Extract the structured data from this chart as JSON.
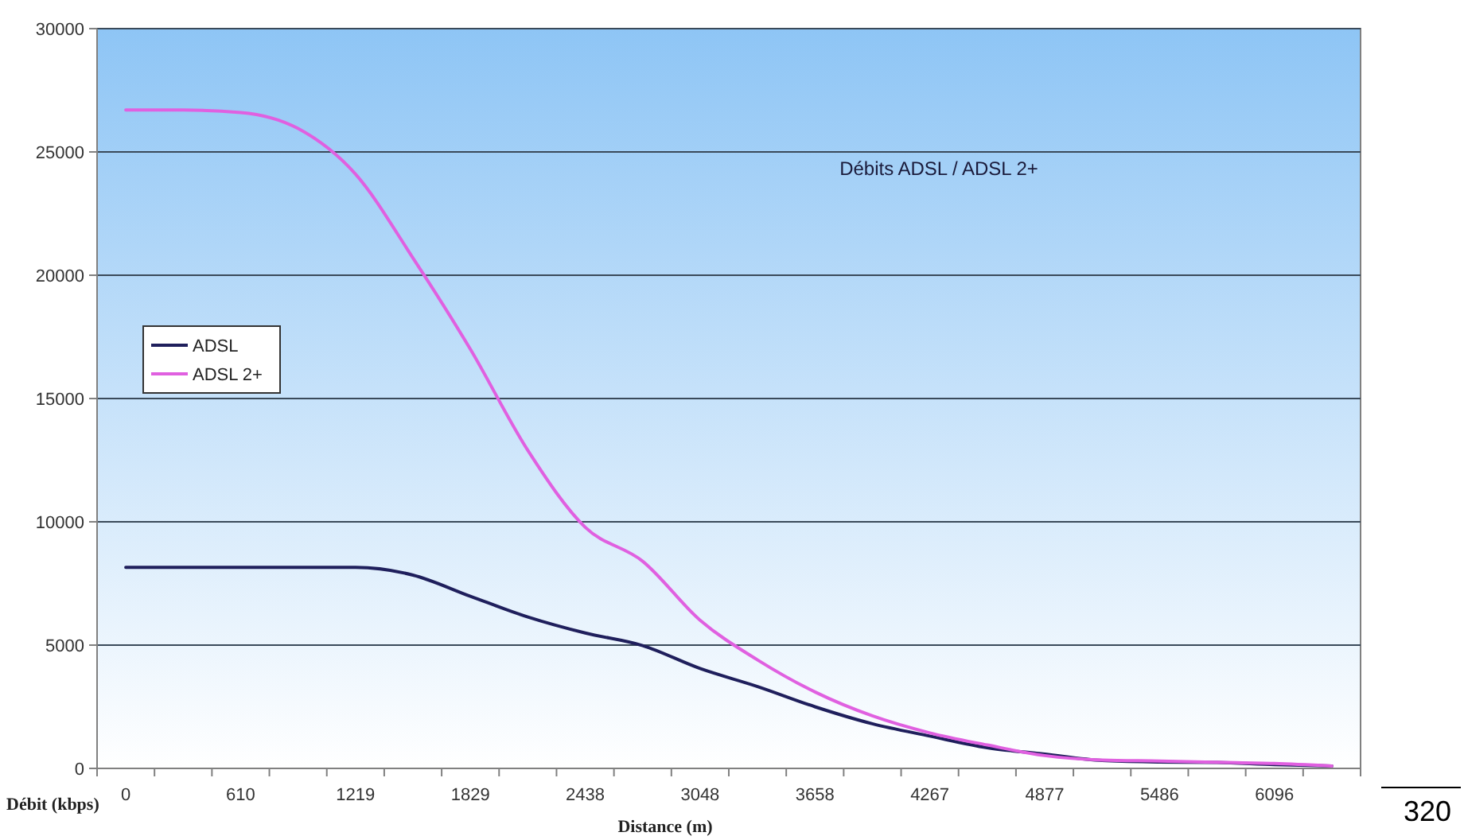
{
  "chart_data": {
    "type": "line",
    "title": "Débits ADSL / ADSL 2+",
    "xlabel": "Distance (m)",
    "ylabel": "Débit (kbps)",
    "categories": [
      "0",
      null,
      "610",
      null,
      "1219",
      null,
      "1829",
      null,
      "2438",
      null,
      "3048",
      null,
      "3658",
      null,
      "4267",
      null,
      "4877",
      null,
      "5486",
      null,
      "6096",
      null
    ],
    "series": [
      {
        "name": "ADSL",
        "color": "#1f1f5c",
        "values": [
          8150,
          8150,
          8150,
          8150,
          8150,
          7840,
          6980,
          6140,
          5490,
          4980,
          4050,
          3320,
          2500,
          1810,
          1310,
          840,
          580,
          320,
          260,
          240,
          150,
          100
        ]
      },
      {
        "name": "ADSL 2+",
        "color": "#e060e0",
        "values": [
          26700,
          26700,
          26600,
          25950,
          24100,
          20700,
          17000,
          12900,
          9780,
          8400,
          6010,
          4400,
          3100,
          2130,
          1440,
          950,
          520,
          340,
          300,
          250,
          200,
          100
        ]
      }
    ],
    "ylim": [
      0,
      30000
    ],
    "yticks": [
      0,
      5000,
      10000,
      15000,
      20000,
      25000,
      30000
    ],
    "grid": "y",
    "legend": "left",
    "marker": "none",
    "line_style": "solid",
    "annotations": [
      "320"
    ]
  }
}
